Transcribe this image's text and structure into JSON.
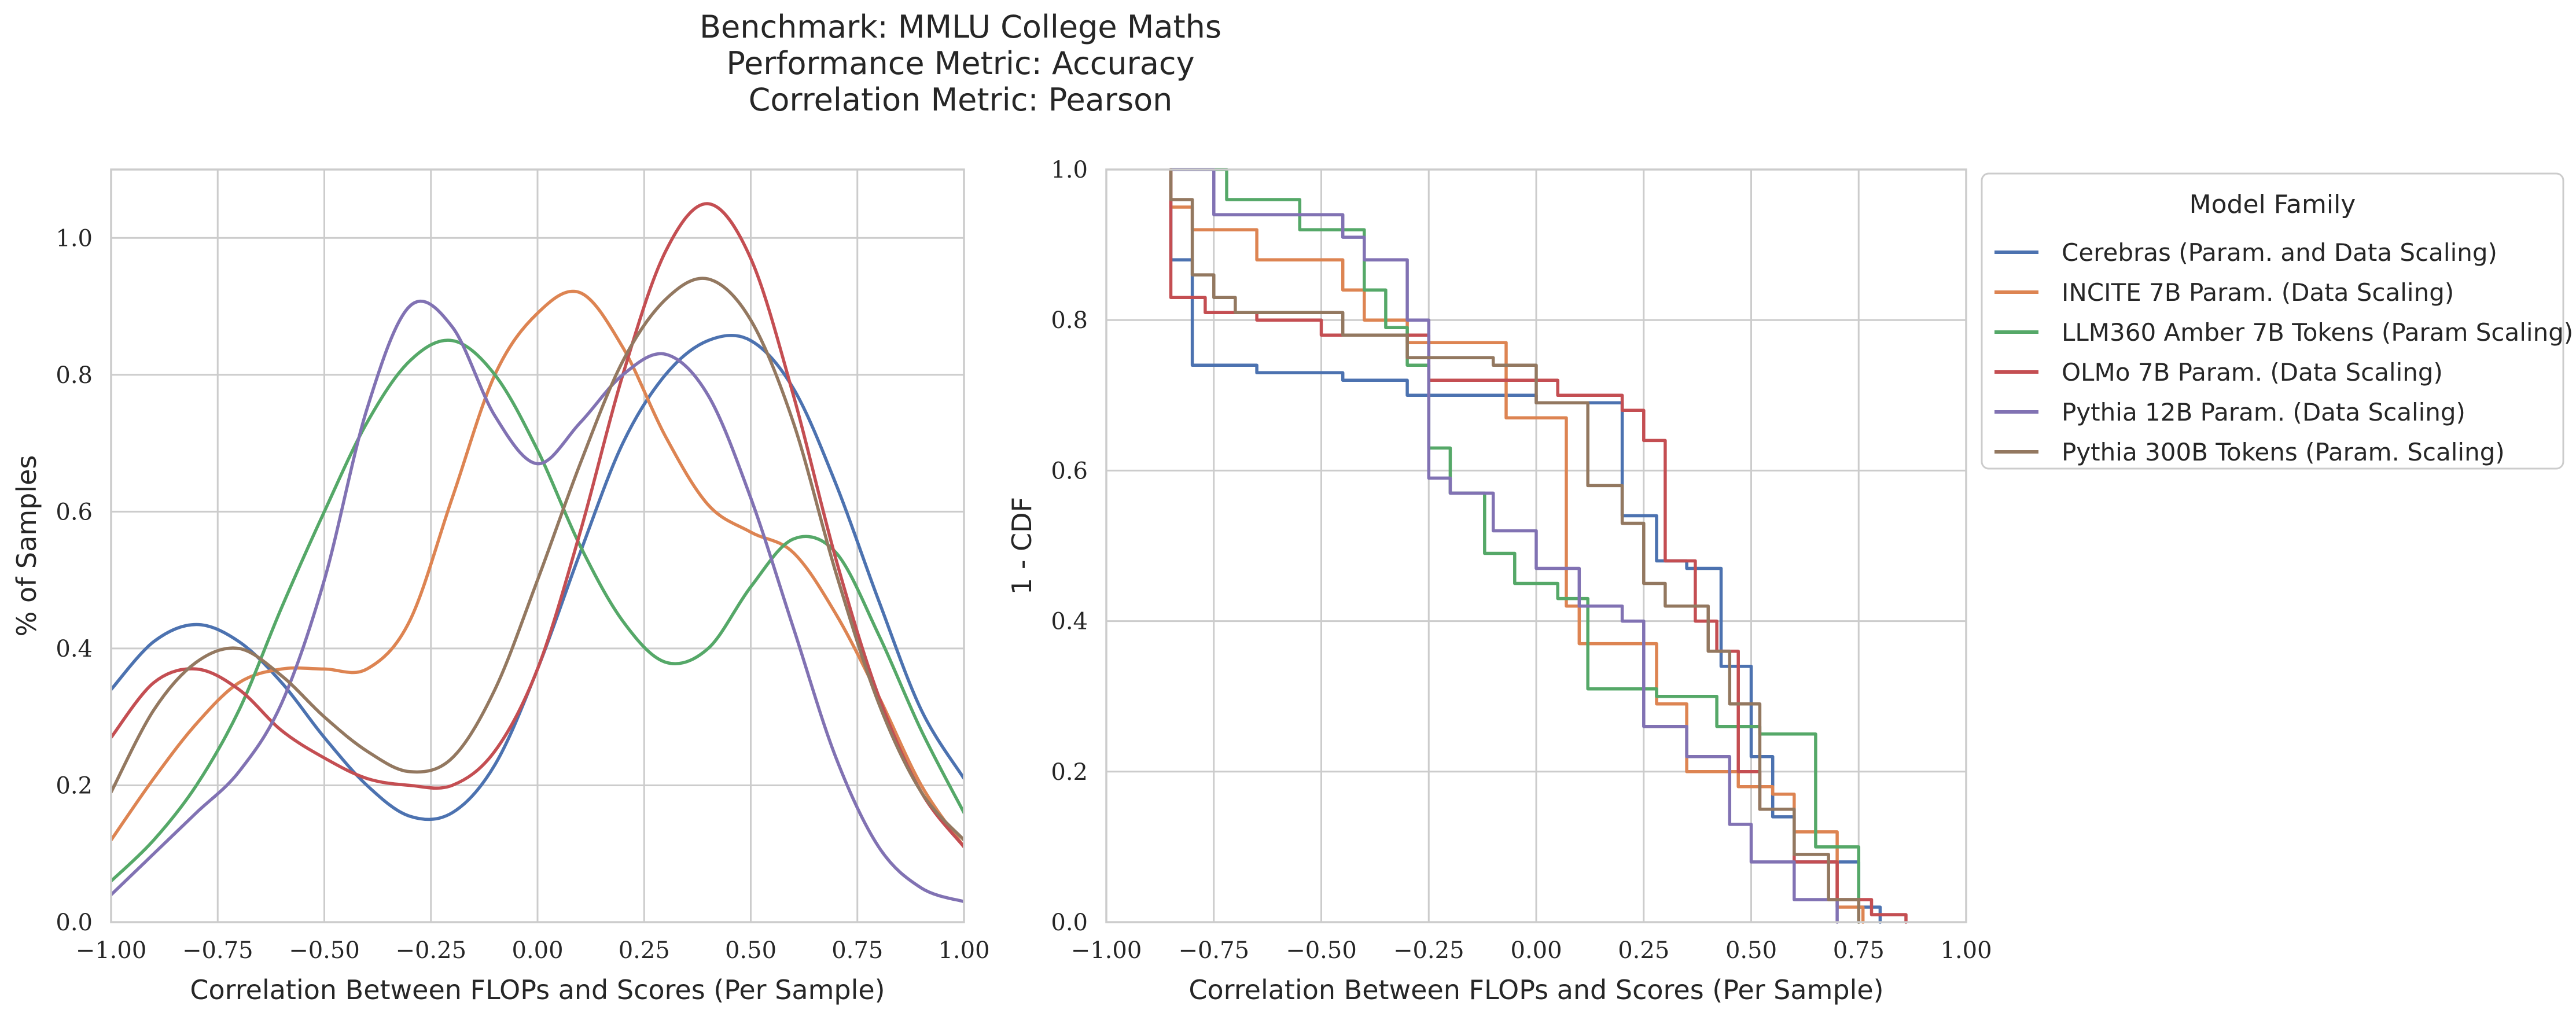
{
  "title_lines": [
    "Benchmark: MMLU College Maths",
    "Performance Metric: Accuracy",
    "Correlation Metric: Pearson"
  ],
  "colors": {
    "blue": "#4c72b0",
    "orange": "#dd8452",
    "green": "#55a868",
    "red": "#c44e52",
    "purple": "#8172b3",
    "brown": "#937860"
  },
  "chart_data": [
    {
      "type": "line",
      "title": "",
      "xlabel": "Correlation Between FLOPs and Scores (Per Sample)",
      "ylabel": "% of Samples",
      "xlim": [
        -1.0,
        1.0
      ],
      "ylim": [
        0.0,
        1.1
      ],
      "xticks": [
        "−1.00",
        "−0.75",
        "−0.50",
        "−0.25",
        "0.00",
        "0.25",
        "0.50",
        "0.75",
        "1.00"
      ],
      "xtick_values": [
        -1.0,
        -0.75,
        -0.5,
        -0.25,
        0.0,
        0.25,
        0.5,
        0.75,
        1.0
      ],
      "yticks": [
        "0.0",
        "0.2",
        "0.4",
        "0.6",
        "0.8",
        "1.0"
      ],
      "ytick_values": [
        0.0,
        0.2,
        0.4,
        0.6,
        0.8,
        1.0
      ],
      "grid": true,
      "x": [
        -1.0,
        -0.9,
        -0.8,
        -0.7,
        -0.6,
        -0.5,
        -0.4,
        -0.3,
        -0.2,
        -0.1,
        0.0,
        0.1,
        0.2,
        0.3,
        0.4,
        0.5,
        0.6,
        0.7,
        0.8,
        0.9,
        1.0
      ],
      "series": [
        {
          "color_key": "blue",
          "values": [
            0.34,
            0.41,
            0.435,
            0.41,
            0.35,
            0.27,
            0.2,
            0.155,
            0.16,
            0.23,
            0.37,
            0.54,
            0.7,
            0.8,
            0.85,
            0.85,
            0.78,
            0.64,
            0.47,
            0.31,
            0.21
          ]
        },
        {
          "color_key": "orange",
          "values": [
            0.12,
            0.21,
            0.29,
            0.35,
            0.37,
            0.37,
            0.37,
            0.44,
            0.62,
            0.8,
            0.89,
            0.92,
            0.84,
            0.71,
            0.61,
            0.57,
            0.54,
            0.45,
            0.33,
            0.2,
            0.11
          ]
        },
        {
          "color_key": "green",
          "values": [
            0.06,
            0.12,
            0.2,
            0.31,
            0.46,
            0.6,
            0.73,
            0.82,
            0.85,
            0.8,
            0.69,
            0.55,
            0.44,
            0.38,
            0.4,
            0.49,
            0.56,
            0.54,
            0.42,
            0.28,
            0.16
          ]
        },
        {
          "color_key": "red",
          "values": [
            0.27,
            0.35,
            0.37,
            0.34,
            0.28,
            0.24,
            0.21,
            0.2,
            0.2,
            0.25,
            0.37,
            0.57,
            0.8,
            0.98,
            1.05,
            0.97,
            0.77,
            0.53,
            0.33,
            0.19,
            0.11
          ]
        },
        {
          "color_key": "purple",
          "values": [
            0.04,
            0.1,
            0.16,
            0.22,
            0.32,
            0.5,
            0.75,
            0.9,
            0.87,
            0.74,
            0.67,
            0.73,
            0.8,
            0.83,
            0.77,
            0.62,
            0.43,
            0.24,
            0.11,
            0.05,
            0.03
          ]
        },
        {
          "color_key": "brown",
          "values": [
            0.19,
            0.31,
            0.38,
            0.4,
            0.36,
            0.3,
            0.25,
            0.22,
            0.24,
            0.34,
            0.5,
            0.67,
            0.82,
            0.91,
            0.94,
            0.88,
            0.73,
            0.51,
            0.32,
            0.19,
            0.12
          ]
        }
      ]
    },
    {
      "type": "line",
      "title": "",
      "xlabel": "Correlation Between FLOPs and Scores (Per Sample)",
      "ylabel": "1 - CDF",
      "xlim": [
        -1.0,
        1.0
      ],
      "ylim": [
        0.0,
        1.0
      ],
      "xticks": [
        "−1.00",
        "−0.75",
        "−0.50",
        "−0.25",
        "0.00",
        "0.25",
        "0.50",
        "0.75",
        "1.00"
      ],
      "xtick_values": [
        -1.0,
        -0.75,
        -0.5,
        -0.25,
        0.0,
        0.25,
        0.5,
        0.75,
        1.0
      ],
      "yticks": [
        "0.0",
        "0.2",
        "0.4",
        "0.6",
        "0.8",
        "1.0"
      ],
      "ytick_values": [
        0.0,
        0.2,
        0.4,
        0.6,
        0.8,
        1.0
      ],
      "grid": true,
      "step": true,
      "legend": {
        "title": "Model Family",
        "placement": "outside-right",
        "entries": [
          {
            "label": "Cerebras (Param. and Data Scaling)",
            "color_key": "blue"
          },
          {
            "label": "INCITE 7B Param. (Data Scaling)",
            "color_key": "orange"
          },
          {
            "label": "LLM360 Amber 7B Tokens (Param Scaling)",
            "color_key": "green"
          },
          {
            "label": "OLMo 7B Param. (Data Scaling)",
            "color_key": "red"
          },
          {
            "label": "Pythia 12B Param. (Data Scaling)",
            "color_key": "purple"
          },
          {
            "label": "Pythia 300B Tokens (Param. Scaling)",
            "color_key": "brown"
          }
        ]
      },
      "series": [
        {
          "color_key": "blue",
          "points": [
            [
              -0.85,
              1.0
            ],
            [
              -0.85,
              0.88
            ],
            [
              -0.8,
              0.88
            ],
            [
              -0.8,
              0.74
            ],
            [
              -0.65,
              0.74
            ],
            [
              -0.65,
              0.73
            ],
            [
              -0.45,
              0.73
            ],
            [
              -0.45,
              0.72
            ],
            [
              -0.3,
              0.72
            ],
            [
              -0.3,
              0.7
            ],
            [
              0.0,
              0.7
            ],
            [
              0.0,
              0.69
            ],
            [
              0.2,
              0.69
            ],
            [
              0.2,
              0.54
            ],
            [
              0.28,
              0.54
            ],
            [
              0.28,
              0.48
            ],
            [
              0.35,
              0.48
            ],
            [
              0.35,
              0.47
            ],
            [
              0.43,
              0.47
            ],
            [
              0.43,
              0.34
            ],
            [
              0.5,
              0.34
            ],
            [
              0.5,
              0.22
            ],
            [
              0.55,
              0.22
            ],
            [
              0.55,
              0.14
            ],
            [
              0.6,
              0.14
            ],
            [
              0.6,
              0.08
            ],
            [
              0.75,
              0.08
            ],
            [
              0.75,
              0.02
            ],
            [
              0.8,
              0.02
            ],
            [
              0.8,
              0.0
            ]
          ]
        },
        {
          "color_key": "orange",
          "points": [
            [
              -0.85,
              1.0
            ],
            [
              -0.85,
              0.95
            ],
            [
              -0.8,
              0.95
            ],
            [
              -0.8,
              0.92
            ],
            [
              -0.65,
              0.92
            ],
            [
              -0.65,
              0.88
            ],
            [
              -0.45,
              0.88
            ],
            [
              -0.45,
              0.84
            ],
            [
              -0.4,
              0.84
            ],
            [
              -0.4,
              0.8
            ],
            [
              -0.3,
              0.8
            ],
            [
              -0.3,
              0.77
            ],
            [
              -0.07,
              0.77
            ],
            [
              -0.07,
              0.67
            ],
            [
              0.07,
              0.67
            ],
            [
              0.07,
              0.42
            ],
            [
              0.1,
              0.42
            ],
            [
              0.1,
              0.37
            ],
            [
              0.28,
              0.37
            ],
            [
              0.28,
              0.29
            ],
            [
              0.35,
              0.29
            ],
            [
              0.35,
              0.2
            ],
            [
              0.47,
              0.2
            ],
            [
              0.47,
              0.18
            ],
            [
              0.55,
              0.18
            ],
            [
              0.55,
              0.17
            ],
            [
              0.6,
              0.17
            ],
            [
              0.6,
              0.12
            ],
            [
              0.7,
              0.12
            ],
            [
              0.7,
              0.02
            ],
            [
              0.76,
              0.02
            ],
            [
              0.76,
              0.0
            ]
          ]
        },
        {
          "color_key": "green",
          "points": [
            [
              -0.85,
              1.0
            ],
            [
              -0.72,
              1.0
            ],
            [
              -0.72,
              0.96
            ],
            [
              -0.55,
              0.96
            ],
            [
              -0.55,
              0.92
            ],
            [
              -0.4,
              0.92
            ],
            [
              -0.4,
              0.84
            ],
            [
              -0.35,
              0.84
            ],
            [
              -0.35,
              0.79
            ],
            [
              -0.3,
              0.79
            ],
            [
              -0.3,
              0.74
            ],
            [
              -0.25,
              0.74
            ],
            [
              -0.25,
              0.63
            ],
            [
              -0.2,
              0.63
            ],
            [
              -0.2,
              0.57
            ],
            [
              -0.12,
              0.57
            ],
            [
              -0.12,
              0.49
            ],
            [
              -0.05,
              0.49
            ],
            [
              -0.05,
              0.45
            ],
            [
              0.05,
              0.45
            ],
            [
              0.05,
              0.43
            ],
            [
              0.12,
              0.43
            ],
            [
              0.12,
              0.31
            ],
            [
              0.28,
              0.31
            ],
            [
              0.28,
              0.3
            ],
            [
              0.42,
              0.3
            ],
            [
              0.42,
              0.26
            ],
            [
              0.52,
              0.26
            ],
            [
              0.52,
              0.25
            ],
            [
              0.65,
              0.25
            ],
            [
              0.65,
              0.1
            ],
            [
              0.75,
              0.1
            ],
            [
              0.75,
              0.0
            ]
          ]
        },
        {
          "color_key": "red",
          "points": [
            [
              -0.85,
              1.0
            ],
            [
              -0.85,
              0.83
            ],
            [
              -0.77,
              0.83
            ],
            [
              -0.77,
              0.81
            ],
            [
              -0.65,
              0.81
            ],
            [
              -0.65,
              0.8
            ],
            [
              -0.5,
              0.8
            ],
            [
              -0.5,
              0.78
            ],
            [
              -0.25,
              0.78
            ],
            [
              -0.25,
              0.72
            ],
            [
              0.05,
              0.72
            ],
            [
              0.05,
              0.7
            ],
            [
              0.2,
              0.7
            ],
            [
              0.2,
              0.68
            ],
            [
              0.25,
              0.68
            ],
            [
              0.25,
              0.64
            ],
            [
              0.3,
              0.64
            ],
            [
              0.3,
              0.48
            ],
            [
              0.37,
              0.48
            ],
            [
              0.37,
              0.4
            ],
            [
              0.42,
              0.4
            ],
            [
              0.42,
              0.36
            ],
            [
              0.47,
              0.36
            ],
            [
              0.47,
              0.2
            ],
            [
              0.52,
              0.2
            ],
            [
              0.52,
              0.15
            ],
            [
              0.6,
              0.15
            ],
            [
              0.6,
              0.08
            ],
            [
              0.7,
              0.08
            ],
            [
              0.7,
              0.03
            ],
            [
              0.78,
              0.03
            ],
            [
              0.78,
              0.01
            ],
            [
              0.86,
              0.01
            ],
            [
              0.86,
              0.0
            ]
          ]
        },
        {
          "color_key": "purple",
          "points": [
            [
              -0.85,
              1.0
            ],
            [
              -0.75,
              1.0
            ],
            [
              -0.75,
              0.94
            ],
            [
              -0.45,
              0.94
            ],
            [
              -0.45,
              0.91
            ],
            [
              -0.4,
              0.91
            ],
            [
              -0.4,
              0.88
            ],
            [
              -0.3,
              0.88
            ],
            [
              -0.3,
              0.8
            ],
            [
              -0.25,
              0.8
            ],
            [
              -0.25,
              0.59
            ],
            [
              -0.2,
              0.59
            ],
            [
              -0.2,
              0.57
            ],
            [
              -0.1,
              0.57
            ],
            [
              -0.1,
              0.52
            ],
            [
              0.0,
              0.52
            ],
            [
              0.0,
              0.47
            ],
            [
              0.1,
              0.47
            ],
            [
              0.1,
              0.42
            ],
            [
              0.2,
              0.42
            ],
            [
              0.2,
              0.4
            ],
            [
              0.25,
              0.4
            ],
            [
              0.25,
              0.26
            ],
            [
              0.35,
              0.26
            ],
            [
              0.35,
              0.22
            ],
            [
              0.45,
              0.22
            ],
            [
              0.45,
              0.13
            ],
            [
              0.5,
              0.13
            ],
            [
              0.5,
              0.08
            ],
            [
              0.6,
              0.08
            ],
            [
              0.6,
              0.03
            ],
            [
              0.7,
              0.03
            ],
            [
              0.7,
              0.0
            ]
          ]
        },
        {
          "color_key": "brown",
          "points": [
            [
              -0.85,
              1.0
            ],
            [
              -0.85,
              0.96
            ],
            [
              -0.8,
              0.96
            ],
            [
              -0.8,
              0.86
            ],
            [
              -0.75,
              0.86
            ],
            [
              -0.75,
              0.83
            ],
            [
              -0.7,
              0.83
            ],
            [
              -0.7,
              0.81
            ],
            [
              -0.45,
              0.81
            ],
            [
              -0.45,
              0.78
            ],
            [
              -0.3,
              0.78
            ],
            [
              -0.3,
              0.75
            ],
            [
              -0.1,
              0.75
            ],
            [
              -0.1,
              0.74
            ],
            [
              0.0,
              0.74
            ],
            [
              0.0,
              0.69
            ],
            [
              0.12,
              0.69
            ],
            [
              0.12,
              0.58
            ],
            [
              0.2,
              0.58
            ],
            [
              0.2,
              0.53
            ],
            [
              0.25,
              0.53
            ],
            [
              0.25,
              0.45
            ],
            [
              0.3,
              0.45
            ],
            [
              0.3,
              0.42
            ],
            [
              0.4,
              0.42
            ],
            [
              0.4,
              0.36
            ],
            [
              0.45,
              0.36
            ],
            [
              0.45,
              0.29
            ],
            [
              0.52,
              0.29
            ],
            [
              0.52,
              0.15
            ],
            [
              0.6,
              0.15
            ],
            [
              0.6,
              0.09
            ],
            [
              0.68,
              0.09
            ],
            [
              0.68,
              0.03
            ],
            [
              0.75,
              0.03
            ],
            [
              0.75,
              0.0
            ]
          ]
        }
      ]
    }
  ]
}
